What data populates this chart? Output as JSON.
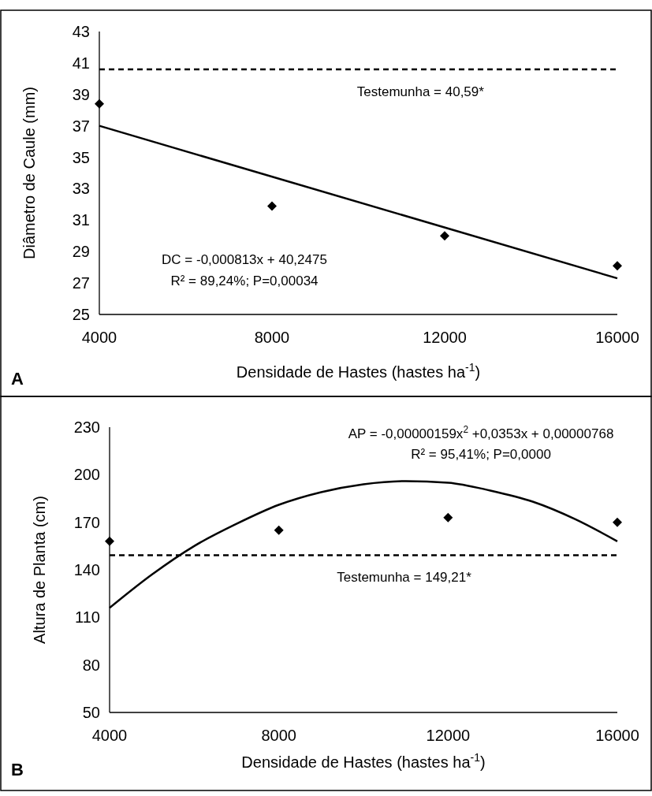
{
  "chart_data": [
    {
      "type": "scatter",
      "xlabel": "Densidade de Hastes (hastes ha$^{-1}$)",
      "ylabel": "Diâmetro de Caule (mm)",
      "xlim": [
        4000,
        16000
      ],
      "xticks": [
        4000,
        8000,
        12000,
        16000
      ],
      "ylim": [
        25,
        43
      ],
      "yticks": [
        25,
        27,
        29,
        31,
        33,
        35,
        37,
        39,
        41,
        43
      ],
      "grid": false,
      "series": [
        {
          "marker": "diamond",
          "color": "#000000",
          "x": [
            4000,
            8000,
            12000,
            16000
          ],
          "values": [
            38.4,
            31.9,
            30.0,
            28.1
          ]
        },
        {
          "type": "line",
          "color": "#000000",
          "line_style": "solid",
          "x": [
            4000,
            16000
          ],
          "values": [
            37.0,
            27.3
          ]
        }
      ],
      "ref_lines": [
        {
          "axis": "y",
          "value": 40.59,
          "label": "Testemunha  = 40,59*",
          "color": "#000000",
          "line_style": "dashed"
        }
      ],
      "annotations": [
        "DC = -0,000813x + 40,2475",
        "R² = 89,24%; P=0,00034",
        "A"
      ]
    },
    {
      "type": "scatter",
      "xlabel": "Densidade de Hastes (hastes ha$^{-1}$)",
      "ylabel": "Altura de Planta (cm)",
      "xlim": [
        4000,
        16000
      ],
      "xticks": [
        4000,
        8000,
        12000,
        16000
      ],
      "ylim": [
        50,
        230
      ],
      "yticks": [
        50,
        80,
        110,
        140,
        170,
        200,
        230
      ],
      "grid": false,
      "series": [
        {
          "marker": "diamond",
          "color": "#000000",
          "x": [
            4000,
            8000,
            12000,
            16000
          ],
          "values": [
            158,
            165,
            173,
            170
          ]
        },
        {
          "type": "line",
          "color": "#000000",
          "line_style": "solid",
          "x": [
            4000,
            5000,
            6000,
            7000,
            8000,
            9000,
            10000,
            11000,
            12000,
            13000,
            14000,
            15000,
            16000
          ],
          "values": [
            116,
            137,
            155,
            169,
            181,
            189,
            194,
            196,
            195,
            190,
            183,
            172,
            158
          ]
        }
      ],
      "ref_lines": [
        {
          "axis": "y",
          "value": 149.21,
          "label": "Testemunha  = 149,21*",
          "color": "#000000",
          "line_style": "dashed"
        }
      ],
      "annotations": [
        "AP = -0,00000159x$^{2}$ +0,0353x + 0,00000768",
        "R² = 95,41%; P=0,0000",
        "B"
      ]
    }
  ]
}
